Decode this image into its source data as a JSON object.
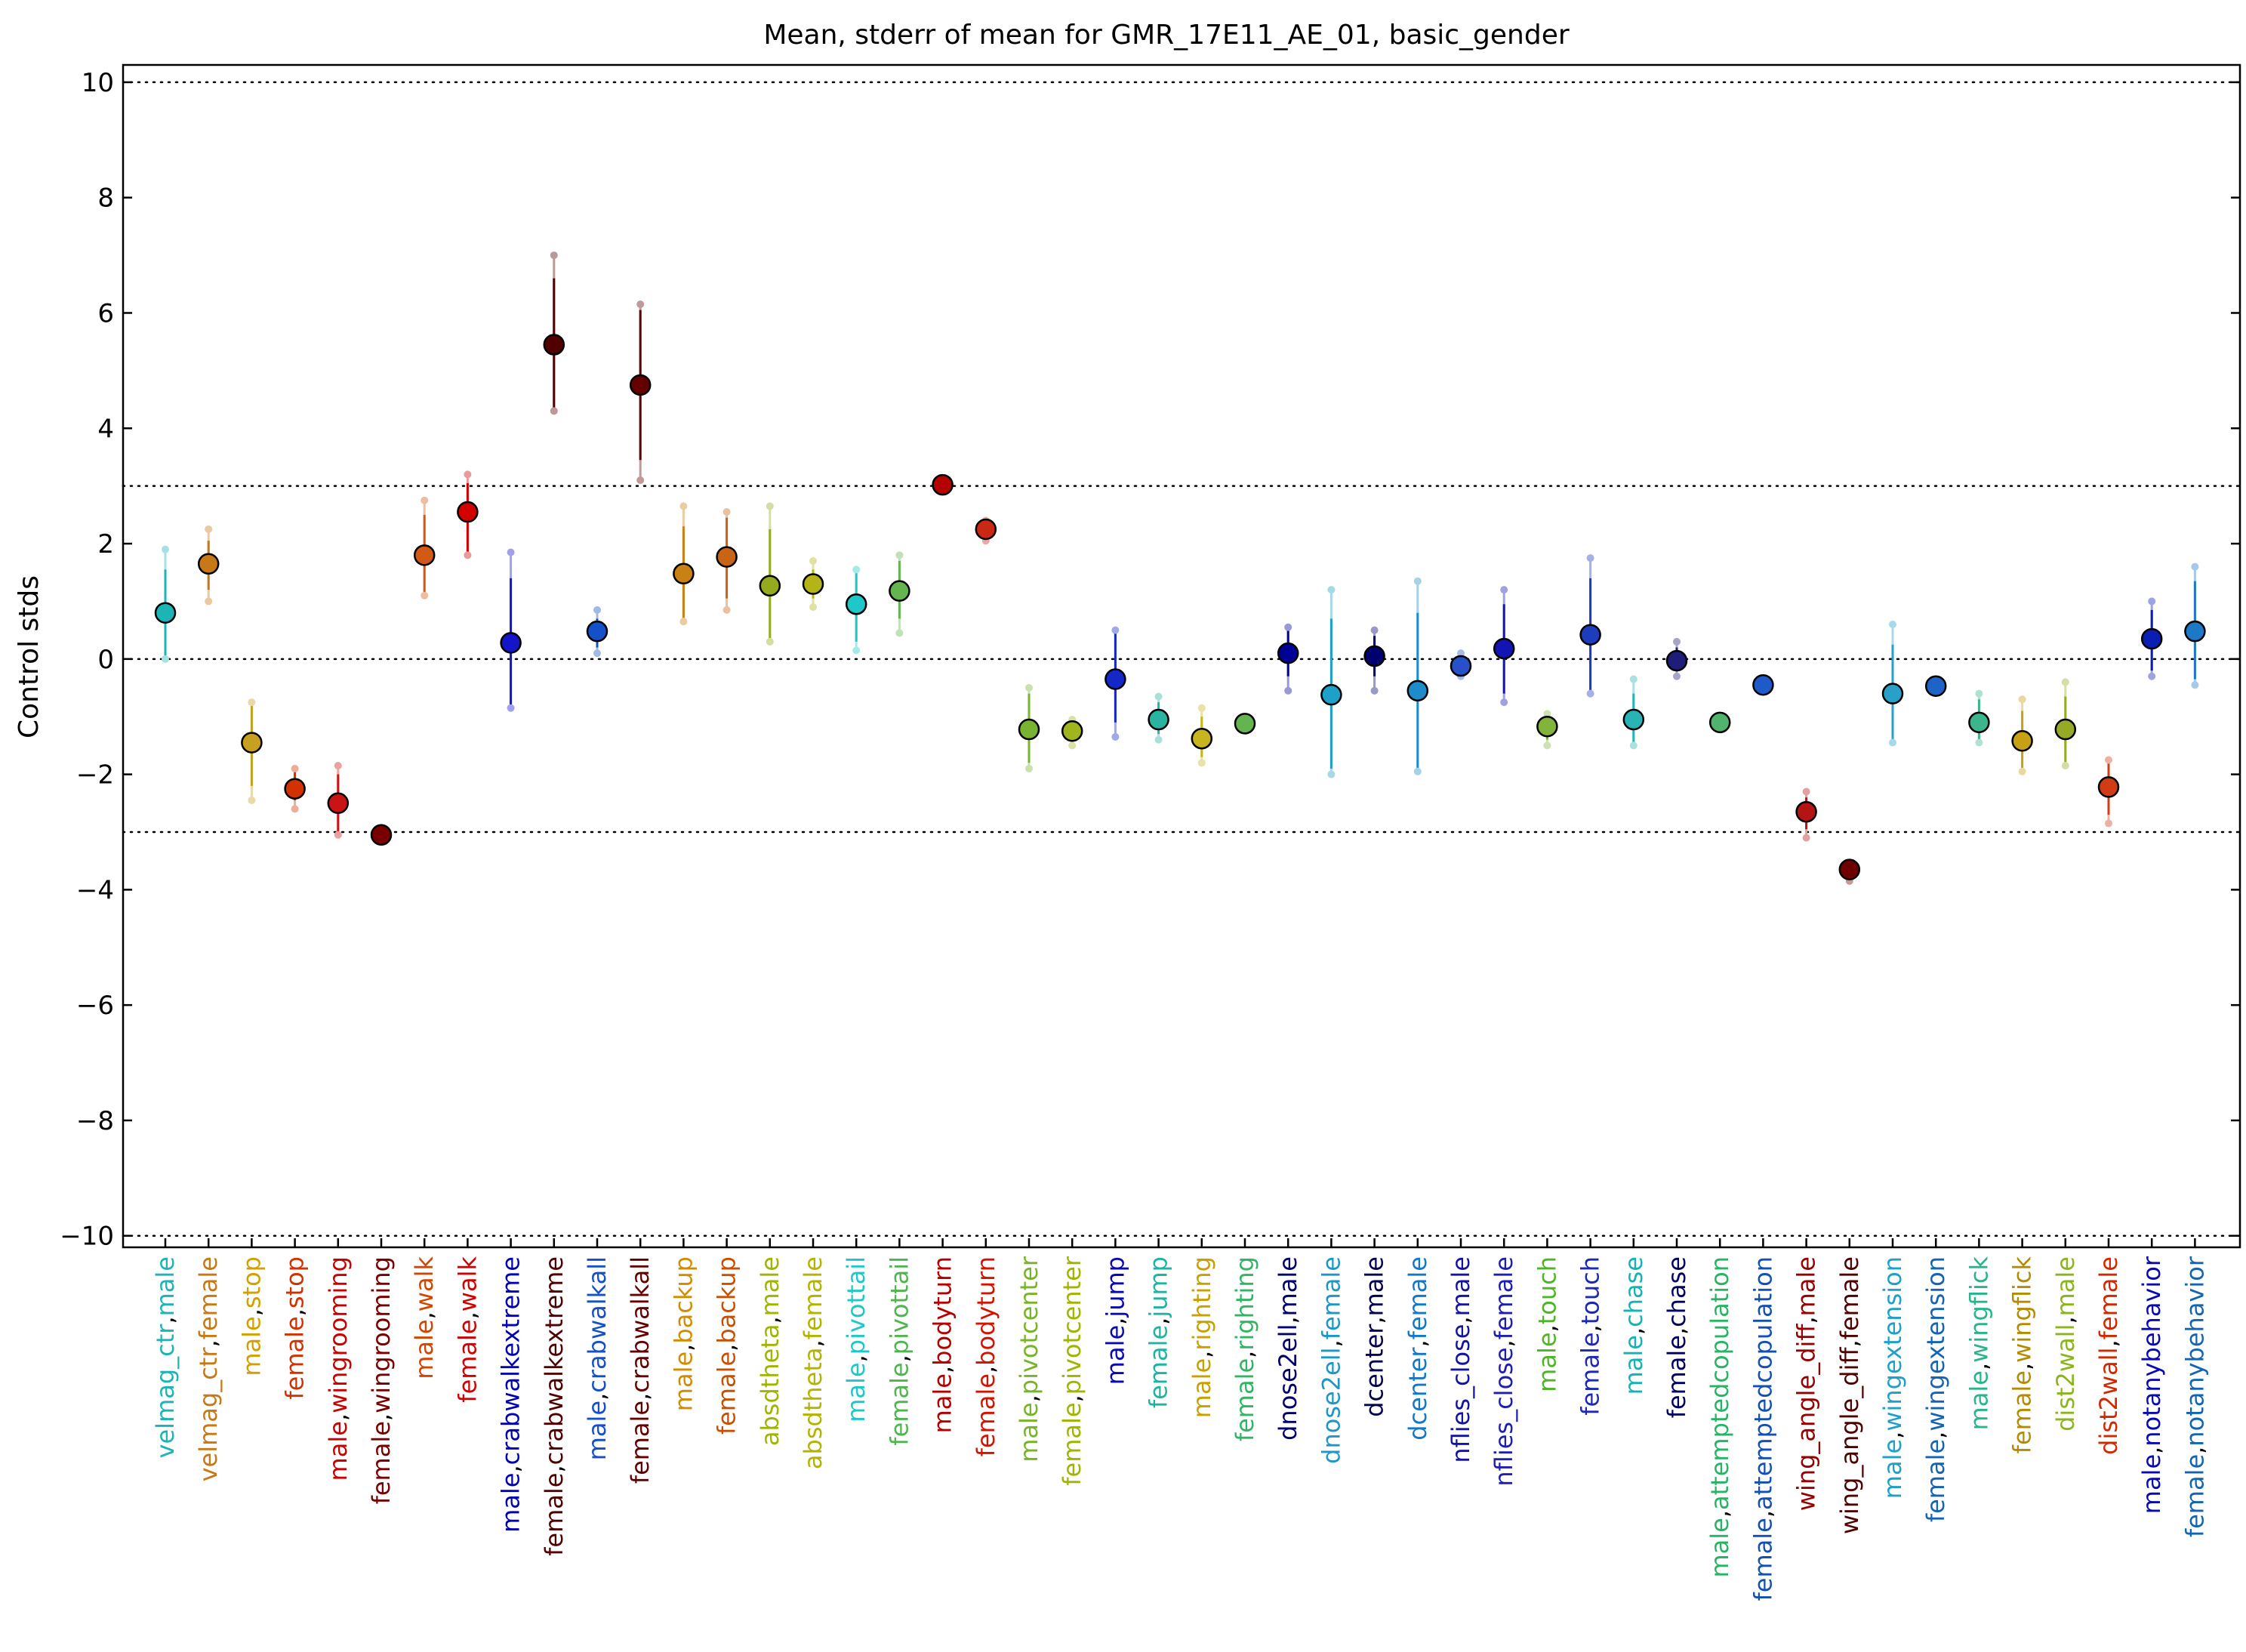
{
  "chart_data": {
    "type": "scatter",
    "title": "Mean, stderr of mean for GMR_17E11_AE_01, basic_gender",
    "xlabel": "",
    "ylabel": "Control stds",
    "ylim": [
      -10.2,
      10.3
    ],
    "yticks": [
      10,
      8,
      6,
      4,
      2,
      0,
      -2,
      -4,
      -6,
      -8,
      -10
    ],
    "ytick_labels": [
      "10",
      "8",
      "6",
      "4",
      "2",
      "0",
      "−2",
      "−4",
      "−6",
      "−8",
      "−10"
    ],
    "reference_lines": [
      10,
      3,
      0,
      -3,
      -10
    ],
    "grid": false,
    "legend": "none",
    "points": [
      {
        "label": "velmag_ctr,male",
        "parts": [
          "velmag_ctr",
          ",",
          "male"
        ],
        "colors": [
          "#1cb4b4",
          "#000000",
          "#1cb4b4"
        ],
        "color": "#1cb4b4",
        "mean": 0.8,
        "err_lo": 0.05,
        "err_hi": 1.55,
        "ext_lo": 0.0,
        "ext_hi": 1.9
      },
      {
        "label": "velmag_ctr,female",
        "parts": [
          "velmag_ctr",
          ",",
          "female"
        ],
        "colors": [
          "#c87814",
          "#000000",
          "#c87814"
        ],
        "color": "#c87814",
        "mean": 1.65,
        "err_lo": 1.2,
        "err_hi": 2.05,
        "ext_lo": 1.0,
        "ext_hi": 2.25
      },
      {
        "label": "male,stop",
        "parts": [
          "male",
          ",",
          "stop"
        ],
        "colors": [
          "#d2a000",
          "#000000",
          "#d2a000"
        ],
        "color": "#c8a020",
        "mean": -1.45,
        "err_lo": -2.2,
        "err_hi": -0.8,
        "ext_lo": -2.45,
        "ext_hi": -0.75
      },
      {
        "label": "female,stop",
        "parts": [
          "female",
          ",",
          "stop"
        ],
        "colors": [
          "#d23200",
          "#000000",
          "#d23200"
        ],
        "color": "#d23200",
        "mean": -2.25,
        "err_lo": -2.45,
        "err_hi": -1.95,
        "ext_lo": -2.6,
        "ext_hi": -1.9
      },
      {
        "label": "male,wingrooming",
        "parts": [
          "male",
          ",",
          "wingrooming"
        ],
        "colors": [
          "#c80000",
          "#000000",
          "#c80000"
        ],
        "color": "#c81414",
        "mean": -2.5,
        "err_lo": -3.0,
        "err_hi": -2.0,
        "ext_lo": -3.05,
        "ext_hi": -1.85
      },
      {
        "label": "female,wingrooming",
        "parts": [
          "female",
          ",",
          "wingrooming"
        ],
        "colors": [
          "#780000",
          "#000000",
          "#780000"
        ],
        "color": "#780000",
        "mean": -3.05,
        "err_lo": -3.1,
        "err_hi": -3.0,
        "ext_lo": -3.1,
        "ext_hi": -3.0
      },
      {
        "label": "male,walk",
        "parts": [
          "male",
          ",",
          "walk"
        ],
        "colors": [
          "#d24600",
          "#000000",
          "#d24600"
        ],
        "color": "#d25a14",
        "mean": 1.8,
        "err_lo": 1.1,
        "err_hi": 2.5,
        "ext_lo": 1.1,
        "ext_hi": 2.75
      },
      {
        "label": "female,walk",
        "parts": [
          "female",
          ",",
          "walk"
        ],
        "colors": [
          "#d20000",
          "#000000",
          "#d20000"
        ],
        "color": "#d20000",
        "mean": 2.55,
        "err_lo": 1.85,
        "err_hi": 3.05,
        "ext_lo": 1.8,
        "ext_hi": 3.2
      },
      {
        "label": "male,crabwalkextreme",
        "parts": [
          "male",
          ",",
          "crabwalkextreme"
        ],
        "colors": [
          "#0000b4",
          "#000000",
          "#0000b4"
        ],
        "color": "#1414c8",
        "mean": 0.28,
        "err_lo": -0.8,
        "err_hi": 1.4,
        "ext_lo": -0.85,
        "ext_hi": 1.85
      },
      {
        "label": "female,crabwalkextreme",
        "parts": [
          "female",
          ",",
          "crabwalkextreme"
        ],
        "colors": [
          "#500000",
          "#000000",
          "#500000"
        ],
        "color": "#500000",
        "mean": 5.45,
        "err_lo": 4.35,
        "err_hi": 6.6,
        "ext_lo": 4.3,
        "ext_hi": 7.0
      },
      {
        "label": "male,crabwalkall",
        "parts": [
          "male",
          ",",
          "crabwalkall"
        ],
        "colors": [
          "#1450c8",
          "#000000",
          "#1450c8"
        ],
        "color": "#1450c8",
        "mean": 0.48,
        "err_lo": 0.2,
        "err_hi": 0.7,
        "ext_lo": 0.1,
        "ext_hi": 0.85
      },
      {
        "label": "female,crabwalkall",
        "parts": [
          "female",
          ",",
          "crabwalkall"
        ],
        "colors": [
          "#640000",
          "#000000",
          "#640000"
        ],
        "color": "#640000",
        "mean": 4.75,
        "err_lo": 3.45,
        "err_hi": 6.05,
        "ext_lo": 3.1,
        "ext_hi": 6.15
      },
      {
        "label": "male,backup",
        "parts": [
          "male",
          ",",
          "backup"
        ],
        "colors": [
          "#d28c00",
          "#000000",
          "#d28c00"
        ],
        "color": "#c88214",
        "mean": 1.48,
        "err_lo": 0.7,
        "err_hi": 2.3,
        "ext_lo": 0.65,
        "ext_hi": 2.65
      },
      {
        "label": "female,backup",
        "parts": [
          "female",
          ",",
          "backup"
        ],
        "colors": [
          "#c85000",
          "#000000",
          "#c85000"
        ],
        "color": "#c86414",
        "mean": 1.77,
        "err_lo": 1.05,
        "err_hi": 2.45,
        "ext_lo": 0.85,
        "ext_hi": 2.55
      },
      {
        "label": "absdtheta,male",
        "parts": [
          "absdtheta",
          ",",
          "male"
        ],
        "colors": [
          "#a0b400",
          "#000000",
          "#a0b400"
        ],
        "color": "#96aa1e",
        "mean": 1.27,
        "err_lo": 0.3,
        "err_hi": 2.25,
        "ext_lo": 0.3,
        "ext_hi": 2.65
      },
      {
        "label": "absdtheta,female",
        "parts": [
          "absdtheta",
          ",",
          "female"
        ],
        "colors": [
          "#b4b400",
          "#000000",
          "#b4b400"
        ],
        "color": "#b4b414",
        "mean": 1.3,
        "err_lo": 1.05,
        "err_hi": 1.55,
        "ext_lo": 0.9,
        "ext_hi": 1.7
      },
      {
        "label": "male,pivottail",
        "parts": [
          "male",
          ",",
          "pivottail"
        ],
        "colors": [
          "#1ec8c8",
          "#000000",
          "#1ec8c8"
        ],
        "color": "#1ec8c8",
        "mean": 0.95,
        "err_lo": 0.3,
        "err_hi": 1.5,
        "ext_lo": 0.15,
        "ext_hi": 1.55
      },
      {
        "label": "female,pivottail",
        "parts": [
          "female",
          ",",
          "pivottail"
        ],
        "colors": [
          "#50b450",
          "#000000",
          "#50b450"
        ],
        "color": "#64b450",
        "mean": 1.18,
        "err_lo": 0.7,
        "err_hi": 1.7,
        "ext_lo": 0.45,
        "ext_hi": 1.8
      },
      {
        "label": "male,bodyturn",
        "parts": [
          "male",
          ",",
          "bodyturn"
        ],
        "colors": [
          "#b40000",
          "#000000",
          "#b40000"
        ],
        "color": "#b40000",
        "mean": 3.02,
        "err_lo": 3.0,
        "err_hi": 3.05,
        "ext_lo": 2.98,
        "ext_hi": 3.06
      },
      {
        "label": "female,bodyturn",
        "parts": [
          "female",
          ",",
          "bodyturn"
        ],
        "colors": [
          "#d21400",
          "#000000",
          "#d21400"
        ],
        "color": "#c82814",
        "mean": 2.25,
        "err_lo": 2.1,
        "err_hi": 2.4,
        "ext_lo": 2.05,
        "ext_hi": 2.4
      },
      {
        "label": "male,pivotcenter",
        "parts": [
          "male",
          ",",
          "pivotcenter"
        ],
        "colors": [
          "#78b428",
          "#000000",
          "#78b428"
        ],
        "color": "#78b432",
        "mean": -1.22,
        "err_lo": -1.8,
        "err_hi": -0.6,
        "ext_lo": -1.9,
        "ext_hi": -0.5
      },
      {
        "label": "female,pivotcenter",
        "parts": [
          "female",
          ",",
          "pivotcenter"
        ],
        "colors": [
          "#a0b400",
          "#000000",
          "#a0b400"
        ],
        "color": "#a0b41e",
        "mean": -1.25,
        "err_lo": -1.4,
        "err_hi": -1.1,
        "ext_lo": -1.5,
        "ext_hi": -1.05
      },
      {
        "label": "male,jump",
        "parts": [
          "male",
          ",",
          "jump"
        ],
        "colors": [
          "#0a0ab4",
          "#000000",
          "#0a0ab4"
        ],
        "color": "#1428c8",
        "mean": -0.35,
        "err_lo": -1.1,
        "err_hi": 0.45,
        "ext_lo": -1.35,
        "ext_hi": 0.5
      },
      {
        "label": "female,jump",
        "parts": [
          "female",
          ",",
          "jump"
        ],
        "colors": [
          "#1eb4a0",
          "#000000",
          "#1eb4a0"
        ],
        "color": "#28b4a0",
        "mean": -1.05,
        "err_lo": -1.3,
        "err_hi": -0.75,
        "ext_lo": -1.4,
        "ext_hi": -0.65
      },
      {
        "label": "male,righting",
        "parts": [
          "male",
          ",",
          "righting"
        ],
        "colors": [
          "#c8a000",
          "#000000",
          "#c8a000"
        ],
        "color": "#c8b41e",
        "mean": -1.38,
        "err_lo": -1.7,
        "err_hi": -1.0,
        "ext_lo": -1.8,
        "ext_hi": -0.85
      },
      {
        "label": "female,righting",
        "parts": [
          "female",
          ",",
          "righting"
        ],
        "colors": [
          "#32b464",
          "#000000",
          "#32b464"
        ],
        "color": "#64b450",
        "mean": -1.12,
        "err_lo": -1.15,
        "err_hi": -1.1,
        "ext_lo": -1.15,
        "ext_hi": -1.1
      },
      {
        "label": "dnose2ell,male",
        "parts": [
          "dnose2ell",
          ",",
          "male"
        ],
        "colors": [
          "#00006e",
          "#000000",
          "#00006e"
        ],
        "color": "#000096",
        "mean": 0.1,
        "err_lo": -0.3,
        "err_hi": 0.5,
        "ext_lo": -0.55,
        "ext_hi": 0.55
      },
      {
        "label": "dnose2ell,female",
        "parts": [
          "dnose2ell",
          ",",
          "female"
        ],
        "colors": [
          "#1e96c8",
          "#000000",
          "#1e96c8"
        ],
        "color": "#1ea0c8",
        "mean": -0.62,
        "err_lo": -1.9,
        "err_hi": 0.7,
        "ext_lo": -2.0,
        "ext_hi": 1.2
      },
      {
        "label": "dcenter,male",
        "parts": [
          "dcenter",
          ",",
          "male"
        ],
        "colors": [
          "#000050",
          "#000000",
          "#000050"
        ],
        "color": "#00006e",
        "mean": 0.05,
        "err_lo": -0.3,
        "err_hi": 0.4,
        "ext_lo": -0.55,
        "ext_hi": 0.5
      },
      {
        "label": "dcenter,female",
        "parts": [
          "dcenter",
          ",",
          "female"
        ],
        "colors": [
          "#1478c8",
          "#000000",
          "#1478c8"
        ],
        "color": "#1e8cc8",
        "mean": -0.55,
        "err_lo": -1.9,
        "err_hi": 0.8,
        "ext_lo": -1.95,
        "ext_hi": 1.35
      },
      {
        "label": "nflies_close,male",
        "parts": [
          "nflies_close",
          ",",
          "male"
        ],
        "colors": [
          "#1414a0",
          "#000000",
          "#1414a0"
        ],
        "color": "#2850c8",
        "mean": -0.12,
        "err_lo": -0.25,
        "err_hi": 0.0,
        "ext_lo": -0.3,
        "ext_hi": 0.1
      },
      {
        "label": "nflies_close,female",
        "parts": [
          "nflies_close",
          ",",
          "female"
        ],
        "colors": [
          "#1e1eb4",
          "#000000",
          "#1e1eb4"
        ],
        "color": "#1414b4",
        "mean": 0.18,
        "err_lo": -0.6,
        "err_hi": 0.95,
        "ext_lo": -0.75,
        "ext_hi": 1.2
      },
      {
        "label": "male,touch",
        "parts": [
          "male",
          ",",
          "touch"
        ],
        "colors": [
          "#50b428",
          "#000000",
          "#50b428"
        ],
        "color": "#82b43c",
        "mean": -1.17,
        "err_lo": -1.4,
        "err_hi": -1.0,
        "ext_lo": -1.5,
        "ext_hi": -0.95
      },
      {
        "label": "female,touch",
        "parts": [
          "female",
          ",",
          "touch"
        ],
        "colors": [
          "#1e28b4",
          "#000000",
          "#1e28b4"
        ],
        "color": "#1e3cbe",
        "mean": 0.42,
        "err_lo": -0.55,
        "err_hi": 1.4,
        "ext_lo": -0.6,
        "ext_hi": 1.75
      },
      {
        "label": "male,chase",
        "parts": [
          "male",
          ",",
          "chase"
        ],
        "colors": [
          "#14b4b4",
          "#000000",
          "#14b4b4"
        ],
        "color": "#28b4b4",
        "mean": -1.05,
        "err_lo": -1.45,
        "err_hi": -0.6,
        "ext_lo": -1.5,
        "ext_hi": -0.35
      },
      {
        "label": "female,chase",
        "parts": [
          "female",
          ",",
          "chase"
        ],
        "colors": [
          "#000064",
          "#000000",
          "#000064"
        ],
        "color": "#1e1e78",
        "mean": -0.03,
        "err_lo": -0.2,
        "err_hi": 0.2,
        "ext_lo": -0.3,
        "ext_hi": 0.3
      },
      {
        "label": "male,attemptedcopulation",
        "parts": [
          "male",
          ",",
          "attemptedcopulation"
        ],
        "colors": [
          "#28b464",
          "#000000",
          "#28b464"
        ],
        "color": "#50b46e",
        "mean": -1.1,
        "err_lo": -1.15,
        "err_hi": -1.08,
        "ext_lo": -1.15,
        "ext_hi": -1.08
      },
      {
        "label": "female,attemptedcopulation",
        "parts": [
          "female",
          ",",
          "attemptedcopulation"
        ],
        "colors": [
          "#1450b4",
          "#000000",
          "#1450b4"
        ],
        "color": "#1e5ac8",
        "mean": -0.45,
        "err_lo": -0.5,
        "err_hi": -0.42,
        "ext_lo": -0.5,
        "ext_hi": -0.42
      },
      {
        "label": "wing_angle_diff,male",
        "parts": [
          "wing_angle_diff",
          ",",
          "male"
        ],
        "colors": [
          "#960000",
          "#000000",
          "#960000"
        ],
        "color": "#b41414",
        "mean": -2.65,
        "err_lo": -2.95,
        "err_hi": -2.4,
        "ext_lo": -3.1,
        "ext_hi": -2.3
      },
      {
        "label": "wing_angle_diff,female",
        "parts": [
          "wing_angle_diff",
          ",",
          "female"
        ],
        "colors": [
          "#500000",
          "#000000",
          "#500000"
        ],
        "color": "#6e0000",
        "mean": -3.65,
        "err_lo": -3.75,
        "err_hi": -3.55,
        "ext_lo": -3.85,
        "ext_hi": -3.55
      },
      {
        "label": "male,wingextension",
        "parts": [
          "male",
          ",",
          "wingextension"
        ],
        "colors": [
          "#1ea0c8",
          "#000000",
          "#1ea0c8"
        ],
        "color": "#28a0c8",
        "mean": -0.6,
        "err_lo": -1.4,
        "err_hi": 0.25,
        "ext_lo": -1.45,
        "ext_hi": 0.6
      },
      {
        "label": "female,wingextension",
        "parts": [
          "female",
          ",",
          "wingextension"
        ],
        "colors": [
          "#1464b4",
          "#000000",
          "#1464b4"
        ],
        "color": "#1e64c8",
        "mean": -0.47,
        "err_lo": -0.5,
        "err_hi": -0.45,
        "ext_lo": -0.5,
        "ext_hi": -0.45
      },
      {
        "label": "male,wingflick",
        "parts": [
          "male",
          ",",
          "wingflick"
        ],
        "colors": [
          "#28b48c",
          "#000000",
          "#28b48c"
        ],
        "color": "#3cb48c",
        "mean": -1.1,
        "err_lo": -1.4,
        "err_hi": -0.7,
        "ext_lo": -1.45,
        "ext_hi": -0.6
      },
      {
        "label": "female,wingflick",
        "parts": [
          "female",
          ",",
          "wingflick"
        ],
        "colors": [
          "#b48c00",
          "#000000",
          "#b48c00"
        ],
        "color": "#c8a014",
        "mean": -1.42,
        "err_lo": -1.9,
        "err_hi": -0.9,
        "ext_lo": -1.95,
        "ext_hi": -0.7
      },
      {
        "label": "dist2wall,male",
        "parts": [
          "dist2wall",
          ",",
          "male"
        ],
        "colors": [
          "#8cb41e",
          "#000000",
          "#8cb41e"
        ],
        "color": "#96aa28",
        "mean": -1.22,
        "err_lo": -1.8,
        "err_hi": -0.65,
        "ext_lo": -1.85,
        "ext_hi": -0.4
      },
      {
        "label": "dist2wall,female",
        "parts": [
          "dist2wall",
          ",",
          "female"
        ],
        "colors": [
          "#d22800",
          "#000000",
          "#d22800"
        ],
        "color": "#d23c14",
        "mean": -2.22,
        "err_lo": -2.7,
        "err_hi": -1.75,
        "ext_lo": -2.85,
        "ext_hi": -1.75
      },
      {
        "label": "male,notanybehavior",
        "parts": [
          "male",
          ",",
          "notanybehavior"
        ],
        "colors": [
          "#0a0ab4",
          "#000000",
          "#0a0ab4"
        ],
        "color": "#0a1eb4",
        "mean": 0.35,
        "err_lo": -0.2,
        "err_hi": 0.85,
        "ext_lo": -0.3,
        "ext_hi": 1.0
      },
      {
        "label": "female,notanybehavior",
        "parts": [
          "female",
          ",",
          "notanybehavior"
        ],
        "colors": [
          "#1464b4",
          "#000000",
          "#1464b4"
        ],
        "color": "#1e78c8",
        "mean": 0.48,
        "err_lo": -0.35,
        "err_hi": 1.35,
        "ext_lo": -0.45,
        "ext_hi": 1.6
      }
    ]
  }
}
